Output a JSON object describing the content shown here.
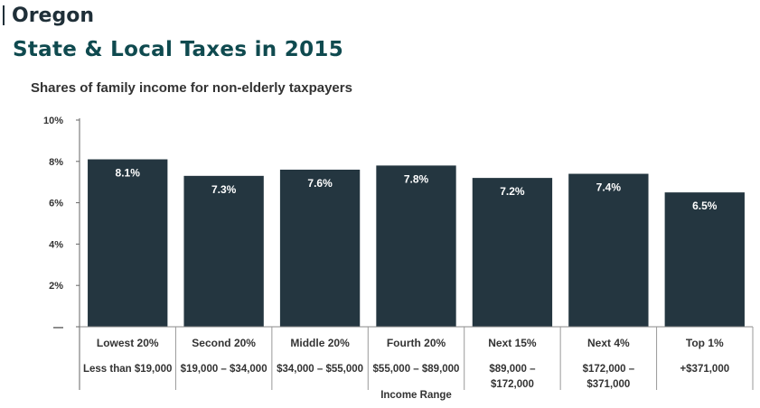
{
  "header": {
    "state": "Oregon",
    "title": "State & Local Taxes in 2015"
  },
  "chart_data": {
    "type": "bar",
    "title": "State & Local Taxes in 2015",
    "subtitle": "Shares of family income for non-elderly taxpayers",
    "xlabel": "Income Range",
    "ylabel": "",
    "ylim": [
      0,
      10
    ],
    "yticks": [
      0,
      2,
      4,
      6,
      8,
      10
    ],
    "ytick_labels": [
      "—",
      "2%",
      "4%",
      "6%",
      "8%",
      "10%"
    ],
    "categories": [
      "Lowest 20%",
      "Second 20%",
      "Middle 20%",
      "Fourth 20%",
      "Next 15%",
      "Next 4%",
      "Top 1%"
    ],
    "income_ranges": [
      [
        "Less than $19,000"
      ],
      [
        "$19,000 – $34,000"
      ],
      [
        "$34,000 – $55,000"
      ],
      [
        "$55,000 – $89,000"
      ],
      [
        "$89,000 –",
        "$172,000"
      ],
      [
        "$172,000 –",
        "$371,000"
      ],
      [
        "+$371,000"
      ]
    ],
    "values": [
      8.1,
      7.3,
      7.6,
      7.8,
      7.2,
      7.4,
      6.5
    ],
    "value_labels": [
      "8.1%",
      "7.3%",
      "7.6%",
      "7.8%",
      "7.2%",
      "7.4%",
      "6.5%"
    ],
    "bar_color": "#243640",
    "grid": false,
    "legend": "none"
  }
}
